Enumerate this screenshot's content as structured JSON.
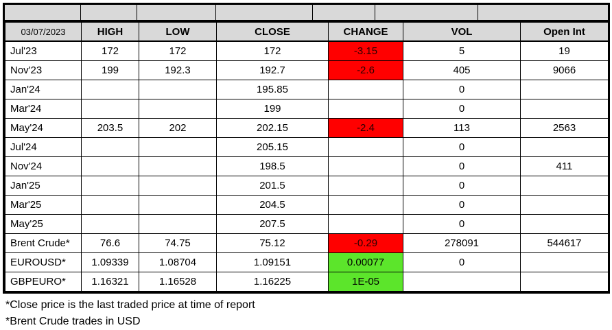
{
  "header": {
    "date": "03/07/2023",
    "high": "HIGH",
    "low": "LOW",
    "close": "CLOSE",
    "change": "CHANGE",
    "vol": "VOL",
    "open_int": "Open Int"
  },
  "rows": [
    {
      "label": "Jul'23",
      "high": "172",
      "low": "172",
      "close": "172",
      "change": "-3.15",
      "change_state": "negative",
      "vol": "5",
      "open_int": "19"
    },
    {
      "label": "Nov'23",
      "high": "199",
      "low": "192.3",
      "close": "192.7",
      "change": "-2.6",
      "change_state": "negative",
      "vol": "405",
      "open_int": "9066"
    },
    {
      "label": "Jan'24",
      "high": "",
      "low": "",
      "close": "195.85",
      "change": "",
      "change_state": "none",
      "vol": "0",
      "open_int": ""
    },
    {
      "label": "Mar'24",
      "high": "",
      "low": "",
      "close": "199",
      "change": "",
      "change_state": "none",
      "vol": "0",
      "open_int": ""
    },
    {
      "label": "May'24",
      "high": "203.5",
      "low": "202",
      "close": "202.15",
      "change": "-2.4",
      "change_state": "negative",
      "vol": "113",
      "open_int": "2563"
    },
    {
      "label": "Jul'24",
      "high": "",
      "low": "",
      "close": "205.15",
      "change": "",
      "change_state": "none",
      "vol": "0",
      "open_int": ""
    },
    {
      "label": "Nov'24",
      "high": "",
      "low": "",
      "close": "198.5",
      "change": "",
      "change_state": "none",
      "vol": "0",
      "open_int": "411"
    },
    {
      "label": "Jan'25",
      "high": "",
      "low": "",
      "close": "201.5",
      "change": "",
      "change_state": "none",
      "vol": "0",
      "open_int": ""
    },
    {
      "label": "Mar'25",
      "high": "",
      "low": "",
      "close": "204.5",
      "change": "",
      "change_state": "none",
      "vol": "0",
      "open_int": ""
    },
    {
      "label": "May'25",
      "high": "",
      "low": "",
      "close": "207.5",
      "change": "",
      "change_state": "none",
      "vol": "0",
      "open_int": ""
    },
    {
      "label": "Brent Crude*",
      "high": "76.6",
      "low": "74.75",
      "close": "75.12",
      "change": "-0.29",
      "change_state": "negative",
      "vol": "278091",
      "open_int": "544617"
    },
    {
      "label": "EUROUSD*",
      "high": "1.09339",
      "low": "1.08704",
      "close": "1.09151",
      "change": "0.00077",
      "change_state": "positive",
      "vol": "0",
      "open_int": ""
    },
    {
      "label": "GBPEURO*",
      "high": "1.16321",
      "low": "1.16528",
      "close": "1.16225",
      "change": "1E-05",
      "change_state": "positive",
      "vol": "",
      "open_int": ""
    }
  ],
  "footnotes": {
    "line1": "*Close price is the last traded price at time of report",
    "line2": "*Brent Crude trades in USD"
  },
  "colors": {
    "header_bg": "#d9d9d9",
    "negative_bg": "#ff0000",
    "positive_bg": "#5ce52b"
  }
}
